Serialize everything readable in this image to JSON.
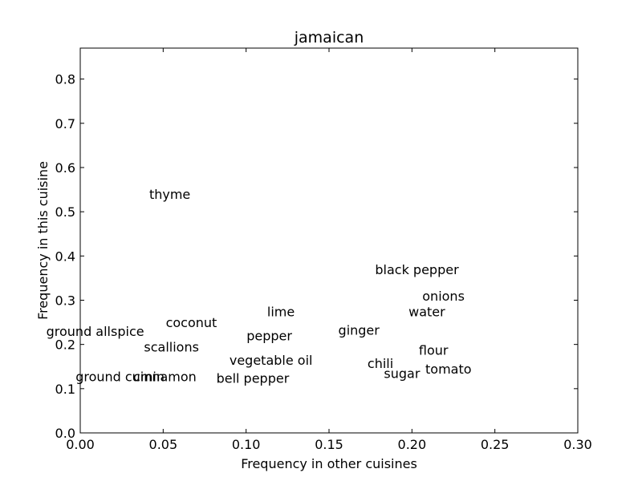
{
  "chart_data": {
    "type": "scatter",
    "title": "jamaican",
    "xlabel": "Frequency in other cuisines",
    "ylabel": "Frequency in this cuisine",
    "xlim": [
      0.0,
      0.3
    ],
    "ylim": [
      0.0,
      0.87
    ],
    "xticks": [
      0.0,
      0.05,
      0.1,
      0.15,
      0.2,
      0.25,
      0.3
    ],
    "xtick_labels": [
      "0.00",
      "0.05",
      "0.10",
      "0.15",
      "0.20",
      "0.25",
      "0.30"
    ],
    "yticks": [
      0.0,
      0.1,
      0.2,
      0.3,
      0.4,
      0.5,
      0.6,
      0.7,
      0.8
    ],
    "ytick_labels": [
      "0.0",
      "0.1",
      "0.2",
      "0.3",
      "0.4",
      "0.5",
      "0.6",
      "0.7",
      "0.8"
    ],
    "grid": false,
    "points": [
      {
        "label": "thyme",
        "x": 0.054,
        "y": 0.54
      },
      {
        "label": "black pepper",
        "x": 0.203,
        "y": 0.37
      },
      {
        "label": "onions",
        "x": 0.219,
        "y": 0.31
      },
      {
        "label": "water",
        "x": 0.209,
        "y": 0.275
      },
      {
        "label": "lime",
        "x": 0.121,
        "y": 0.275
      },
      {
        "label": "coconut",
        "x": 0.067,
        "y": 0.25
      },
      {
        "label": "ground allspice",
        "x": 0.009,
        "y": 0.23
      },
      {
        "label": "pepper",
        "x": 0.114,
        "y": 0.22
      },
      {
        "label": "ginger",
        "x": 0.168,
        "y": 0.233
      },
      {
        "label": "scallions",
        "x": 0.055,
        "y": 0.195
      },
      {
        "label": "flour",
        "x": 0.213,
        "y": 0.188
      },
      {
        "label": "vegetable oil",
        "x": 0.115,
        "y": 0.165
      },
      {
        "label": "chili",
        "x": 0.181,
        "y": 0.158
      },
      {
        "label": "tomato",
        "x": 0.222,
        "y": 0.145
      },
      {
        "label": "sugar",
        "x": 0.194,
        "y": 0.135
      },
      {
        "label": "ground cumin",
        "x": 0.024,
        "y": 0.128
      },
      {
        "label": "cinnamon",
        "x": 0.051,
        "y": 0.128
      },
      {
        "label": "bell pepper",
        "x": 0.104,
        "y": 0.124
      }
    ]
  }
}
